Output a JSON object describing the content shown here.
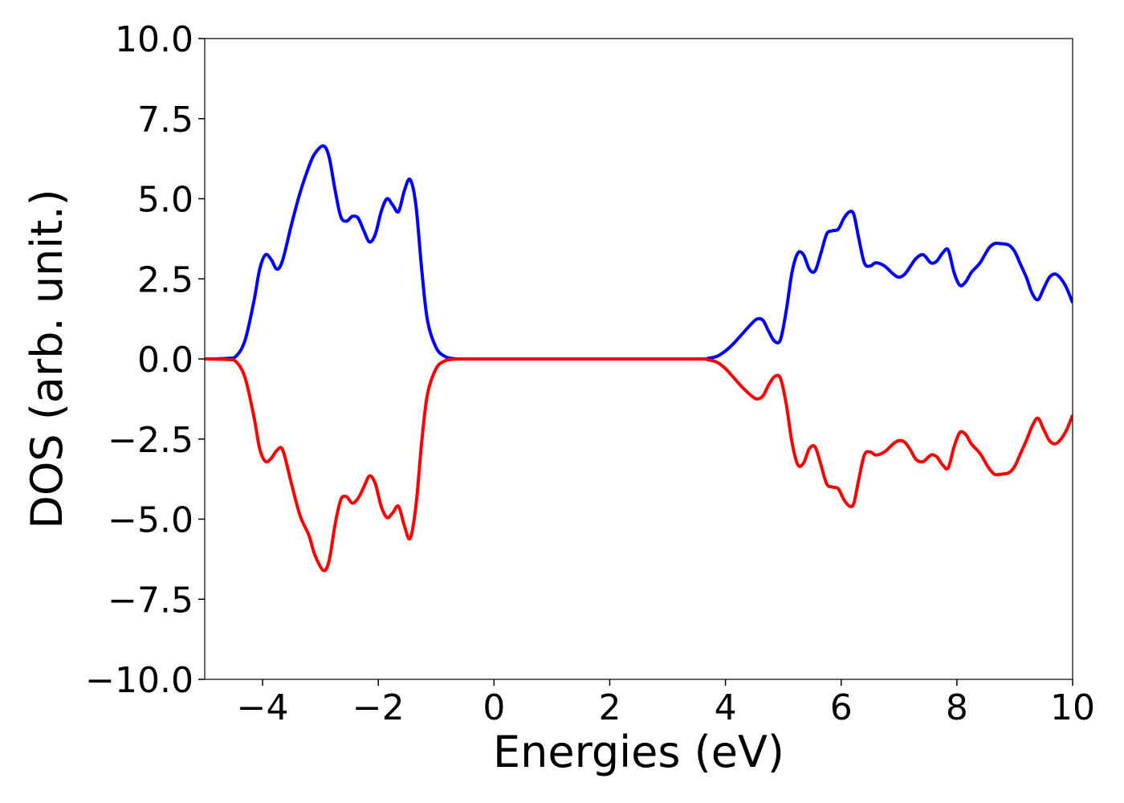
{
  "chart_data": {
    "type": "line",
    "title": "",
    "xlabel": "Energies (eV)",
    "ylabel": "DOS (arb. unit.)",
    "xlim": [
      -5,
      10
    ],
    "ylim": [
      -10,
      10
    ],
    "grid": false,
    "legend": "none",
    "x_ticks": [
      -4,
      -2,
      0,
      2,
      4,
      6,
      8,
      10
    ],
    "x_tick_labels": [
      "−4",
      "−2",
      "0",
      "2",
      "4",
      "6",
      "8",
      "10"
    ],
    "y_ticks": [
      10,
      7.5,
      5,
      2.5,
      0,
      -2.5,
      -5,
      -7.5,
      -10
    ],
    "y_tick_labels": [
      "10.0",
      "7.5",
      "5.0",
      "2.5",
      "0.0",
      "−2.5",
      "−5.0",
      "−7.5",
      "−10.0"
    ],
    "series": [
      {
        "color": "#0000ff",
        "x": [
          -5.0,
          -4.6,
          -4.45,
          -4.3,
          -4.15,
          -4.05,
          -3.95,
          -3.85,
          -3.75,
          -3.65,
          -3.5,
          -3.35,
          -3.2,
          -3.1,
          -2.95,
          -2.85,
          -2.75,
          -2.65,
          -2.55,
          -2.45,
          -2.35,
          -2.25,
          -2.15,
          -2.05,
          -1.95,
          -1.85,
          -1.75,
          -1.65,
          -1.55,
          -1.45,
          -1.35,
          -1.25,
          -1.15,
          -1.0,
          -0.85,
          -0.7,
          -0.5,
          0.0,
          2.0,
          3.5,
          3.7,
          3.85,
          4.0,
          4.15,
          4.3,
          4.45,
          4.55,
          4.65,
          4.75,
          4.85,
          4.95,
          5.05,
          5.15,
          5.25,
          5.35,
          5.45,
          5.55,
          5.65,
          5.75,
          5.85,
          5.95,
          6.05,
          6.15,
          6.22,
          6.3,
          6.4,
          6.5,
          6.6,
          6.75,
          6.9,
          7.0,
          7.1,
          7.2,
          7.3,
          7.42,
          7.55,
          7.65,
          7.75,
          7.85,
          7.95,
          8.05,
          8.15,
          8.25,
          8.4,
          8.55,
          8.65,
          8.75,
          8.9,
          9.0,
          9.1,
          9.2,
          9.3,
          9.4,
          9.5,
          9.6,
          9.7,
          9.8,
          9.9,
          10.0
        ],
        "y": [
          0.0,
          0.02,
          0.1,
          0.6,
          1.8,
          2.8,
          3.25,
          3.1,
          2.8,
          3.1,
          4.2,
          5.2,
          6.0,
          6.4,
          6.65,
          6.3,
          5.3,
          4.45,
          4.3,
          4.45,
          4.4,
          4.0,
          3.65,
          3.9,
          4.6,
          5.0,
          4.8,
          4.6,
          5.25,
          5.6,
          4.8,
          2.8,
          1.2,
          0.35,
          0.08,
          0.01,
          0.0,
          0.0,
          0.0,
          0.0,
          0.02,
          0.08,
          0.25,
          0.5,
          0.8,
          1.1,
          1.25,
          1.2,
          0.85,
          0.55,
          0.6,
          1.5,
          2.7,
          3.3,
          3.25,
          2.8,
          2.75,
          3.3,
          3.9,
          4.0,
          4.05,
          4.4,
          4.6,
          4.5,
          3.8,
          3.0,
          2.9,
          3.0,
          2.9,
          2.65,
          2.55,
          2.65,
          2.9,
          3.15,
          3.25,
          3.0,
          3.05,
          3.3,
          3.4,
          2.7,
          2.3,
          2.4,
          2.7,
          3.0,
          3.45,
          3.6,
          3.6,
          3.55,
          3.35,
          2.95,
          2.55,
          2.05,
          1.85,
          2.2,
          2.55,
          2.65,
          2.5,
          2.2,
          1.75
        ]
      },
      {
        "color": "#ff0000",
        "x": [
          -5.0,
          -4.6,
          -4.45,
          -4.3,
          -4.15,
          -4.05,
          -3.95,
          -3.85,
          -3.75,
          -3.65,
          -3.5,
          -3.35,
          -3.2,
          -3.1,
          -2.95,
          -2.85,
          -2.75,
          -2.65,
          -2.55,
          -2.45,
          -2.35,
          -2.25,
          -2.15,
          -2.05,
          -1.95,
          -1.85,
          -1.75,
          -1.65,
          -1.55,
          -1.45,
          -1.35,
          -1.25,
          -1.15,
          -1.0,
          -0.85,
          -0.7,
          -0.5,
          0.0,
          2.0,
          3.5,
          3.7,
          3.85,
          4.0,
          4.15,
          4.3,
          4.45,
          4.55,
          4.65,
          4.75,
          4.85,
          4.95,
          5.05,
          5.15,
          5.25,
          5.35,
          5.45,
          5.55,
          5.65,
          5.75,
          5.85,
          5.95,
          6.05,
          6.15,
          6.22,
          6.3,
          6.4,
          6.5,
          6.6,
          6.75,
          6.9,
          7.0,
          7.1,
          7.2,
          7.3,
          7.42,
          7.55,
          7.65,
          7.75,
          7.85,
          7.95,
          8.05,
          8.15,
          8.25,
          8.4,
          8.55,
          8.65,
          8.75,
          8.9,
          9.0,
          9.1,
          9.2,
          9.3,
          9.4,
          9.5,
          9.6,
          9.7,
          9.8,
          9.9,
          10.0
        ],
        "y": [
          0.0,
          -0.02,
          -0.1,
          -0.6,
          -1.8,
          -2.8,
          -3.2,
          -3.1,
          -2.85,
          -2.85,
          -3.9,
          -4.9,
          -5.5,
          -6.1,
          -6.6,
          -6.3,
          -5.2,
          -4.4,
          -4.3,
          -4.5,
          -4.35,
          -4.0,
          -3.65,
          -3.9,
          -4.6,
          -4.95,
          -4.8,
          -4.6,
          -5.2,
          -5.6,
          -4.6,
          -2.6,
          -1.1,
          -0.3,
          -0.06,
          -0.01,
          0.0,
          0.0,
          0.0,
          0.0,
          -0.03,
          -0.1,
          -0.3,
          -0.6,
          -0.9,
          -1.15,
          -1.25,
          -1.15,
          -0.8,
          -0.55,
          -0.6,
          -1.4,
          -2.6,
          -3.3,
          -3.25,
          -2.8,
          -2.75,
          -3.3,
          -3.9,
          -4.0,
          -4.05,
          -4.4,
          -4.6,
          -4.5,
          -3.8,
          -3.0,
          -2.9,
          -3.0,
          -2.9,
          -2.65,
          -2.55,
          -2.6,
          -2.85,
          -3.15,
          -3.2,
          -3.0,
          -3.05,
          -3.3,
          -3.4,
          -2.75,
          -2.3,
          -2.35,
          -2.65,
          -2.95,
          -3.4,
          -3.6,
          -3.6,
          -3.55,
          -3.35,
          -2.95,
          -2.55,
          -2.1,
          -1.85,
          -2.2,
          -2.55,
          -2.65,
          -2.5,
          -2.2,
          -1.75
        ]
      }
    ]
  }
}
